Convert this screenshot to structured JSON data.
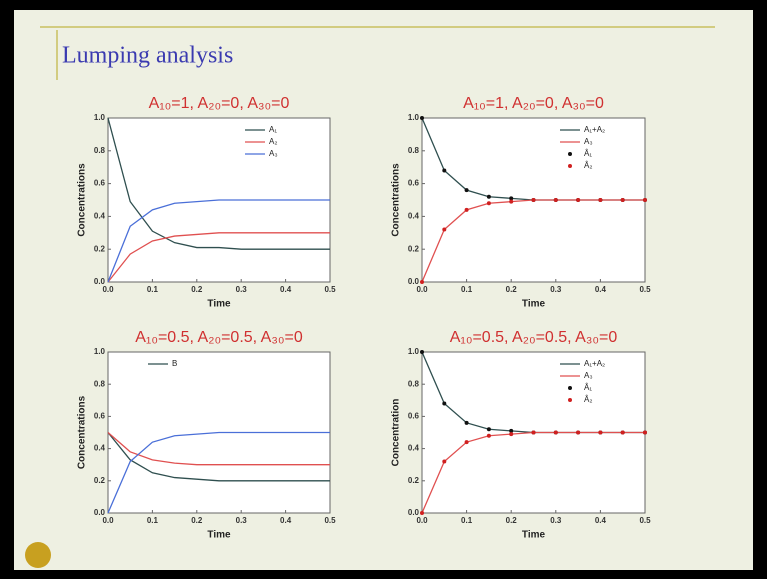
{
  "slide": {
    "title": "Lumping analysis"
  },
  "chart_data": [
    {
      "type": "line",
      "title": "A₁₀=1, A₂₀=0, A₃₀=0",
      "x_label": "Time",
      "y_label": "Concentrations",
      "x": [
        0,
        0.05,
        0.1,
        0.15,
        0.2,
        0.25,
        0.3,
        0.35,
        0.4,
        0.45,
        0.5
      ],
      "series": [
        {
          "name": "A₁",
          "color": "#2f4f4f",
          "values": [
            1,
            0.49,
            0.31,
            0.24,
            0.21,
            0.21,
            0.2,
            0.2,
            0.2,
            0.2,
            0.2
          ]
        },
        {
          "name": "A₂",
          "color": "#e05050",
          "values": [
            0,
            0.17,
            0.25,
            0.28,
            0.29,
            0.3,
            0.3,
            0.3,
            0.3,
            0.3,
            0.3
          ]
        },
        {
          "name": "A₃",
          "color": "#4a6fd8",
          "values": [
            0,
            0.34,
            0.44,
            0.48,
            0.49,
            0.5,
            0.5,
            0.5,
            0.5,
            0.5,
            0.5
          ]
        }
      ],
      "xlim": [
        0,
        0.5
      ],
      "ylim": [
        0,
        1
      ],
      "xticks": [
        {
          "value": 0,
          "label": "0.0"
        },
        0.1,
        0.2,
        0.3,
        0.4,
        0.5
      ],
      "yticks": [
        {
          "value": 0,
          "label": "0.0"
        },
        0.2,
        0.4,
        0.6,
        0.8,
        {
          "value": 1,
          "label": "1.0"
        }
      ],
      "legend": "upper right"
    },
    {
      "type": "line",
      "title": "A₁₀=1, A₂₀=0, A₃₀=0",
      "x_label": "Time",
      "y_label": "Concentrations",
      "x": [
        0,
        0.05,
        0.1,
        0.15,
        0.2,
        0.25,
        0.3,
        0.35,
        0.4,
        0.45,
        0.5
      ],
      "series": [
        {
          "name": "A₁+A₂",
          "color": "#2f4f4f",
          "values": [
            1,
            0.68,
            0.56,
            0.52,
            0.51,
            0.5,
            0.5,
            0.5,
            0.5,
            0.5,
            0.5
          ]
        },
        {
          "name": "A₃",
          "color": "#e05050",
          "values": [
            0,
            0.32,
            0.44,
            0.48,
            0.49,
            0.5,
            0.5,
            0.5,
            0.5,
            0.5,
            0.5
          ]
        },
        {
          "name": "Â₁",
          "color": "#111111",
          "marker": true,
          "values": [
            1,
            0.68,
            0.56,
            0.52,
            0.51,
            0.5,
            0.5,
            0.5,
            0.5,
            0.5,
            0.5
          ]
        },
        {
          "name": "Â₂",
          "color": "#d02020",
          "marker": true,
          "values": [
            0,
            0.32,
            0.44,
            0.48,
            0.49,
            0.5,
            0.5,
            0.5,
            0.5,
            0.5,
            0.5
          ]
        }
      ],
      "xlim": [
        0,
        0.5
      ],
      "ylim": [
        0,
        1
      ],
      "xticks": [
        {
          "value": 0,
          "label": "0.0"
        },
        0.1,
        0.2,
        0.3,
        0.4,
        0.5
      ],
      "yticks": [
        {
          "value": 0,
          "label": "0.0"
        },
        0.2,
        0.4,
        0.6,
        0.8,
        {
          "value": 1,
          "label": "1.0"
        }
      ],
      "legend": "upper right"
    },
    {
      "type": "line",
      "title": "A₁₀=0.5, A₂₀=0.5, A₃₀=0",
      "x_label": "Time",
      "y_label": "Concentrations",
      "x": [
        0,
        0.05,
        0.1,
        0.15,
        0.2,
        0.25,
        0.3,
        0.35,
        0.4,
        0.45,
        0.5
      ],
      "series": [
        {
          "name": "B",
          "color": "#2f4f4f",
          "values": [
            0.5,
            0.33,
            0.25,
            0.22,
            0.21,
            0.2,
            0.2,
            0.2,
            0.2,
            0.2,
            0.2
          ]
        },
        {
          "color": "#e05050",
          "values": [
            0.5,
            0.38,
            0.33,
            0.31,
            0.3,
            0.3,
            0.3,
            0.3,
            0.3,
            0.3,
            0.3
          ]
        },
        {
          "color": "#4a6fd8",
          "values": [
            0,
            0.32,
            0.44,
            0.48,
            0.49,
            0.5,
            0.5,
            0.5,
            0.5,
            0.5,
            0.5
          ]
        }
      ],
      "xlim": [
        0,
        0.5
      ],
      "ylim": [
        0,
        1
      ],
      "xticks": [
        {
          "value": 0,
          "label": "0.0"
        },
        0.1,
        0.2,
        0.3,
        0.4,
        0.5
      ],
      "yticks": [
        {
          "value": 0,
          "label": "0.0"
        },
        0.2,
        0.4,
        0.6,
        0.8,
        {
          "value": 1,
          "label": "1.0"
        }
      ],
      "legend": "upper left"
    },
    {
      "type": "line",
      "title": "A₁₀=0.5, A₂₀=0.5, A₃₀=0",
      "x_label": "Time",
      "y_label": "Concentration",
      "x": [
        0,
        0.05,
        0.1,
        0.15,
        0.2,
        0.25,
        0.3,
        0.35,
        0.4,
        0.45,
        0.5
      ],
      "series": [
        {
          "name": "A₁+A₂",
          "color": "#2f4f4f",
          "values": [
            1,
            0.68,
            0.56,
            0.52,
            0.51,
            0.5,
            0.5,
            0.5,
            0.5,
            0.5,
            0.5
          ]
        },
        {
          "name": "A₃",
          "color": "#e05050",
          "values": [
            0,
            0.32,
            0.44,
            0.48,
            0.49,
            0.5,
            0.5,
            0.5,
            0.5,
            0.5,
            0.5
          ]
        },
        {
          "name": "Â₁",
          "color": "#111111",
          "marker": true,
          "values": [
            1,
            0.68,
            0.56,
            0.52,
            0.51,
            0.5,
            0.5,
            0.5,
            0.5,
            0.5,
            0.5
          ]
        },
        {
          "name": "Â₂",
          "color": "#d02020",
          "marker": true,
          "values": [
            0,
            0.32,
            0.44,
            0.48,
            0.49,
            0.5,
            0.5,
            0.5,
            0.5,
            0.5,
            0.5
          ]
        }
      ],
      "xlim": [
        0,
        0.5
      ],
      "ylim": [
        0,
        1
      ],
      "xticks": [
        {
          "value": 0,
          "label": "0.0"
        },
        0.1,
        0.2,
        0.3,
        0.4,
        0.5
      ],
      "yticks": [
        {
          "value": 0,
          "label": "0.0"
        },
        0.2,
        0.4,
        0.6,
        0.8,
        {
          "value": 1,
          "label": "1.0"
        }
      ],
      "legend": "upper right"
    }
  ]
}
